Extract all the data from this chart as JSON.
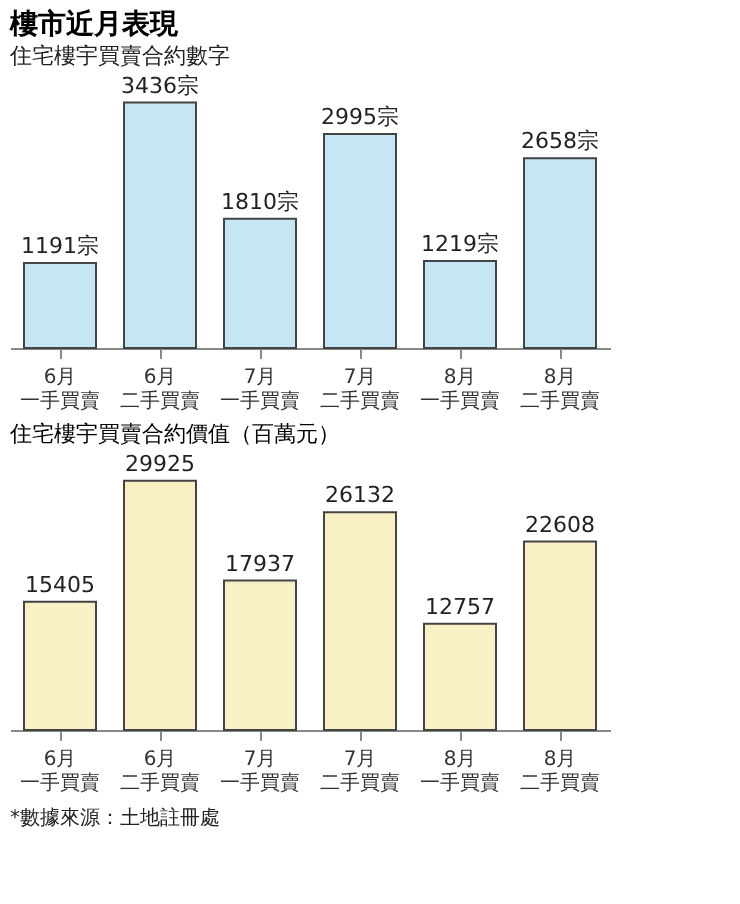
{
  "chart_data": [
    {
      "type": "bar",
      "title": "樓市近月表現",
      "subtitle": "住宅樓宇買賣合約數字",
      "categories": [
        "6月一手買賣",
        "6月二手買賣",
        "7月一手買賣",
        "7月二手買賣",
        "8月一手買賣",
        "8月二手買賣"
      ],
      "values": [
        1191,
        3436,
        1810,
        2995,
        1219,
        2658
      ],
      "color": "#c6e6f5",
      "value_labels": [
        "1191宗",
        "3436宗",
        "1810宗",
        "2995宗",
        "1219宗",
        "2658宗"
      ]
    },
    {
      "type": "bar",
      "title": "住宅樓宇買賣合約價值（百萬元）",
      "categories": [
        "6月一手買賣",
        "6月二手買賣",
        "7月一手買賣",
        "7月二手買賣",
        "8月一手買賣",
        "8月二手買賣"
      ],
      "values": [
        15405,
        29925,
        17937,
        26132,
        12757,
        22608
      ],
      "color": "#f9f0c6",
      "data_labels": true,
      "annotations": [
        "*數據來源：土地註冊處"
      ]
    }
  ]
}
